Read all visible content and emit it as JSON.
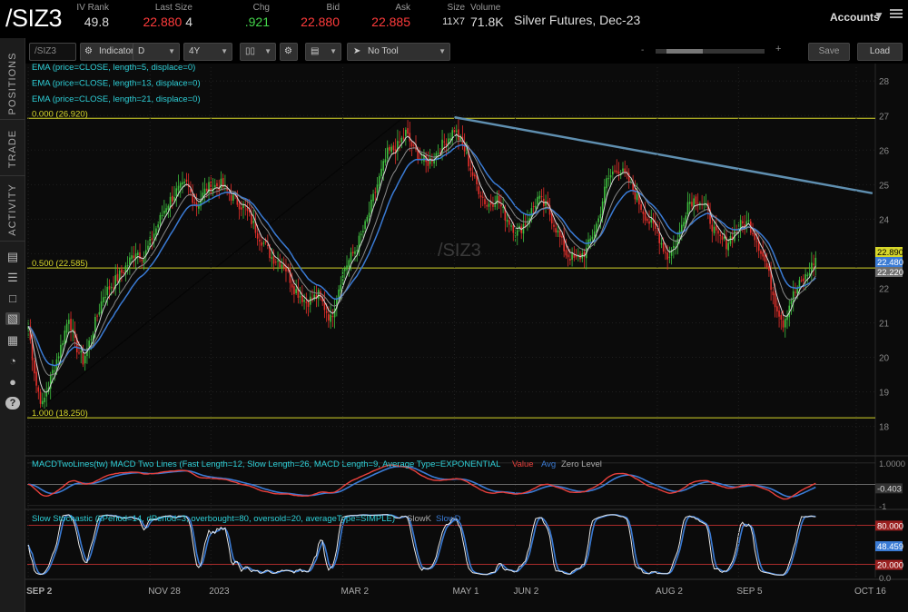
{
  "header": {
    "symbol": "/SIZ3",
    "columns": [
      {
        "label": "IV Rank",
        "value": "49.8",
        "color": "normal"
      },
      {
        "label": "Last Size",
        "value": "22.880",
        "extra": "4",
        "color": "red"
      },
      {
        "label": "Chg",
        "value": ".921",
        "color": "green"
      },
      {
        "label": "Bid",
        "value": "22.880",
        "color": "red"
      },
      {
        "label": "Ask",
        "value": "22.885",
        "color": "red"
      },
      {
        "label": "Size",
        "value": "11X7",
        "color": "normal"
      },
      {
        "label": "Volume",
        "value": "71.8K",
        "color": "normal"
      }
    ],
    "description": "Silver Futures, Dec-23",
    "accounts": "Accounts"
  },
  "sidebar": {
    "tabs": [
      "POSITIONS",
      "TRADE",
      "ACTIVITY"
    ],
    "icons": [
      "news-icon",
      "list-icon",
      "folder-icon",
      "chart-icon",
      "grid-icon",
      "gauge-icon",
      "people-icon",
      "help-icon"
    ]
  },
  "toolbar": {
    "symbol_box": "/SIZ3",
    "indicators_label": "Indicators",
    "aggregation": "D",
    "timeframe": "4Y",
    "tool_label": "No Tool",
    "save_label": "Save",
    "load_label": "Load",
    "slider_labels": [
      "-",
      "+"
    ]
  },
  "colors": {
    "up": "#3fbf3f",
    "down": "#e8302b",
    "ema5": "#d8d8d8",
    "ema13": "#8a8a8a",
    "ema21": "#3a7bd5",
    "fib": "#d7d72a",
    "trend": "#5f8fb0",
    "macd_value": "#e8403c",
    "macd_avg": "#3a7bd5",
    "stoch_k": "#e8e8e8",
    "stoch_d": "#3a7bd5",
    "os_line": "#c03030",
    "fill": "#d7d72a"
  },
  "chart_data": {
    "type": "candlestick",
    "watermark": "/SIZ3",
    "price_axis": {
      "ticks": [
        28,
        27,
        26,
        25,
        24,
        23,
        22,
        21,
        20,
        19,
        18
      ],
      "range": [
        17.2,
        28.4
      ]
    },
    "x_ticks": [
      "SEP 2",
      "NOV 28",
      "2023",
      "MAR 2",
      "MAY 1",
      "JUN 2",
      "AUG 2",
      "SEP 5",
      "OCT 16"
    ],
    "x_tick_index": [
      0,
      60,
      90,
      155,
      210,
      240,
      310,
      350,
      408
    ],
    "studies": [
      "EMA (price=CLOSE, length=5, displace=0)",
      "EMA (price=CLOSE, length=13, displace=0)",
      "EMA (price=CLOSE, length=21, displace=0)"
    ],
    "fib_levels": [
      {
        "label": "0.000 (26.920)",
        "price": 26.92
      },
      {
        "label": "0.500 (22.585)",
        "price": 22.585
      },
      {
        "label": "1.000 (18.250)",
        "price": 18.25
      }
    ],
    "trendline": {
      "from": {
        "i": 210,
        "p": 26.95
      },
      "to": {
        "i": 416,
        "p": 24.75
      }
    },
    "rising_line": {
      "from": {
        "i": 0,
        "p": 18.25
      },
      "to": {
        "i": 185,
        "p": 26.95
      }
    },
    "price_labels": [
      {
        "value": "22.890",
        "bg": "#d7d72a",
        "color": "#000"
      },
      {
        "value": "22.480",
        "bg": "#3a7bd5",
        "color": "#fff"
      },
      {
        "value": "22.220",
        "bg": "#6f6f6f",
        "color": "#fff"
      }
    ],
    "anchors": [
      [
        0,
        20.9
      ],
      [
        4,
        19.2
      ],
      [
        7,
        18.6
      ],
      [
        11,
        19.4
      ],
      [
        16,
        20.3
      ],
      [
        20,
        21.2
      ],
      [
        23,
        20.4
      ],
      [
        27,
        19.9
      ],
      [
        31,
        20.6
      ],
      [
        37,
        21.8
      ],
      [
        44,
        22.3
      ],
      [
        49,
        22.7
      ],
      [
        53,
        23.1
      ],
      [
        57,
        22.9
      ],
      [
        62,
        23.6
      ],
      [
        68,
        24.4
      ],
      [
        73,
        24.8
      ],
      [
        78,
        25.0
      ],
      [
        83,
        24.4
      ],
      [
        88,
        24.9
      ],
      [
        95,
        25.0
      ],
      [
        101,
        24.6
      ],
      [
        107,
        24.3
      ],
      [
        113,
        23.6
      ],
      [
        120,
        22.9
      ],
      [
        126,
        22.7
      ],
      [
        131,
        22.0
      ],
      [
        137,
        21.6
      ],
      [
        143,
        21.8
      ],
      [
        149,
        21.1
      ],
      [
        155,
        22.5
      ],
      [
        161,
        23.1
      ],
      [
        166,
        23.8
      ],
      [
        172,
        25.0
      ],
      [
        177,
        25.9
      ],
      [
        182,
        26.1
      ],
      [
        186,
        26.5
      ],
      [
        190,
        26.0
      ],
      [
        196,
        25.6
      ],
      [
        201,
        25.9
      ],
      [
        206,
        26.3
      ],
      [
        210,
        26.6
      ],
      [
        215,
        26.0
      ],
      [
        220,
        25.1
      ],
      [
        226,
        24.4
      ],
      [
        231,
        24.6
      ],
      [
        235,
        24.1
      ],
      [
        241,
        23.6
      ],
      [
        246,
        24.0
      ],
      [
        251,
        24.6
      ],
      [
        256,
        24.3
      ],
      [
        261,
        23.6
      ],
      [
        265,
        23.0
      ],
      [
        270,
        22.8
      ],
      [
        275,
        23.1
      ],
      [
        281,
        24.0
      ],
      [
        285,
        25.1
      ],
      [
        290,
        25.5
      ],
      [
        295,
        25.2
      ],
      [
        300,
        24.6
      ],
      [
        305,
        24.0
      ],
      [
        310,
        23.6
      ],
      [
        315,
        22.9
      ],
      [
        320,
        23.4
      ],
      [
        325,
        24.5
      ],
      [
        330,
        24.6
      ],
      [
        334,
        24.3
      ],
      [
        339,
        23.5
      ],
      [
        344,
        23.3
      ],
      [
        350,
        23.8
      ],
      [
        355,
        23.9
      ],
      [
        359,
        23.4
      ],
      [
        364,
        22.6
      ],
      [
        368,
        21.6
      ],
      [
        372,
        21.0
      ],
      [
        376,
        21.7
      ],
      [
        380,
        22.1
      ],
      [
        384,
        22.4
      ],
      [
        388,
        22.88
      ]
    ],
    "macd": {
      "label": "MACDTwoLines(tw) MACD Two Lines (Fast Length=12, Slow Length=26, MACD Length=9, Average Type=EXPONENTIAL",
      "legend": [
        "Value",
        "Avg",
        "Zero Level"
      ],
      "range": [
        -1.05,
        1.25
      ],
      "ticks": [
        {
          "v": 1.0,
          "label": "1.0000"
        },
        {
          "v": -1.0,
          "label": "-1"
        }
      ],
      "current": "-0.403"
    },
    "stochastic": {
      "label": "Slow Stochastic (kPeriod=14, dPeriod=3, overbought=80, oversold=20, averageType=SIMPLE)",
      "legend": [
        "SlowK",
        "SlowD"
      ],
      "overbought": 80,
      "oversold": 20,
      "ticks": [
        {
          "v": 80,
          "label": "80.000"
        },
        {
          "v": 20,
          "label": "20.000"
        },
        {
          "v": 0,
          "label": "0.0"
        }
      ],
      "current": "48.459"
    }
  }
}
